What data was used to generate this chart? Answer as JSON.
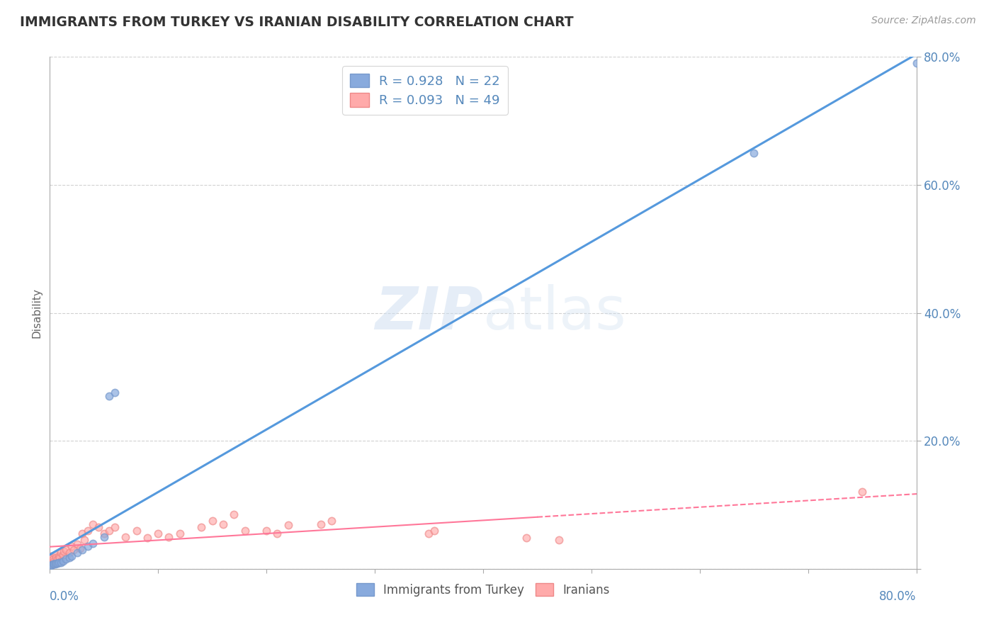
{
  "title": "IMMIGRANTS FROM TURKEY VS IRANIAN DISABILITY CORRELATION CHART",
  "source": "Source: ZipAtlas.com",
  "ylabel": "Disability",
  "legend_label1": "Immigrants from Turkey",
  "legend_label2": "Iranians",
  "xlim": [
    0.0,
    0.8
  ],
  "ylim": [
    0.0,
    0.8
  ],
  "color_blue": "#88AADD",
  "color_blue_edge": "#7799CC",
  "color_pink": "#FFAAAA",
  "color_pink_edge": "#EE8888",
  "color_blue_line": "#5599DD",
  "color_pink_line": "#FF7799",
  "color_tick": "#5588BB",
  "watermark_color": "#CCDDF0",
  "turkey_x": [
    0.001,
    0.002,
    0.003,
    0.004,
    0.005,
    0.006,
    0.007,
    0.008,
    0.01,
    0.012,
    0.015,
    0.018,
    0.02,
    0.025,
    0.03,
    0.035,
    0.04,
    0.05,
    0.055,
    0.06,
    0.65,
    0.8
  ],
  "turkey_y": [
    0.005,
    0.006,
    0.007,
    0.008,
    0.008,
    0.009,
    0.009,
    0.01,
    0.01,
    0.012,
    0.015,
    0.018,
    0.02,
    0.025,
    0.03,
    0.035,
    0.04,
    0.05,
    0.27,
    0.275,
    0.65,
    0.79
  ],
  "iranian_x": [
    0.001,
    0.002,
    0.003,
    0.004,
    0.005,
    0.005,
    0.006,
    0.007,
    0.008,
    0.009,
    0.01,
    0.01,
    0.012,
    0.013,
    0.015,
    0.018,
    0.02,
    0.022,
    0.025,
    0.028,
    0.03,
    0.032,
    0.035,
    0.04,
    0.045,
    0.05,
    0.055,
    0.06,
    0.07,
    0.08,
    0.09,
    0.1,
    0.11,
    0.12,
    0.14,
    0.15,
    0.16,
    0.17,
    0.18,
    0.2,
    0.21,
    0.22,
    0.25,
    0.26,
    0.35,
    0.355,
    0.44,
    0.47,
    0.75
  ],
  "iranian_y": [
    0.02,
    0.018,
    0.015,
    0.012,
    0.022,
    0.01,
    0.018,
    0.015,
    0.02,
    0.018,
    0.025,
    0.012,
    0.022,
    0.028,
    0.03,
    0.025,
    0.035,
    0.03,
    0.038,
    0.032,
    0.055,
    0.045,
    0.06,
    0.07,
    0.065,
    0.055,
    0.06,
    0.065,
    0.05,
    0.06,
    0.048,
    0.055,
    0.05,
    0.055,
    0.065,
    0.075,
    0.07,
    0.085,
    0.06,
    0.06,
    0.055,
    0.068,
    0.07,
    0.075,
    0.055,
    0.06,
    0.048,
    0.045,
    0.12
  ],
  "turkey_marker_size": 55,
  "iranian_marker_size": 55
}
